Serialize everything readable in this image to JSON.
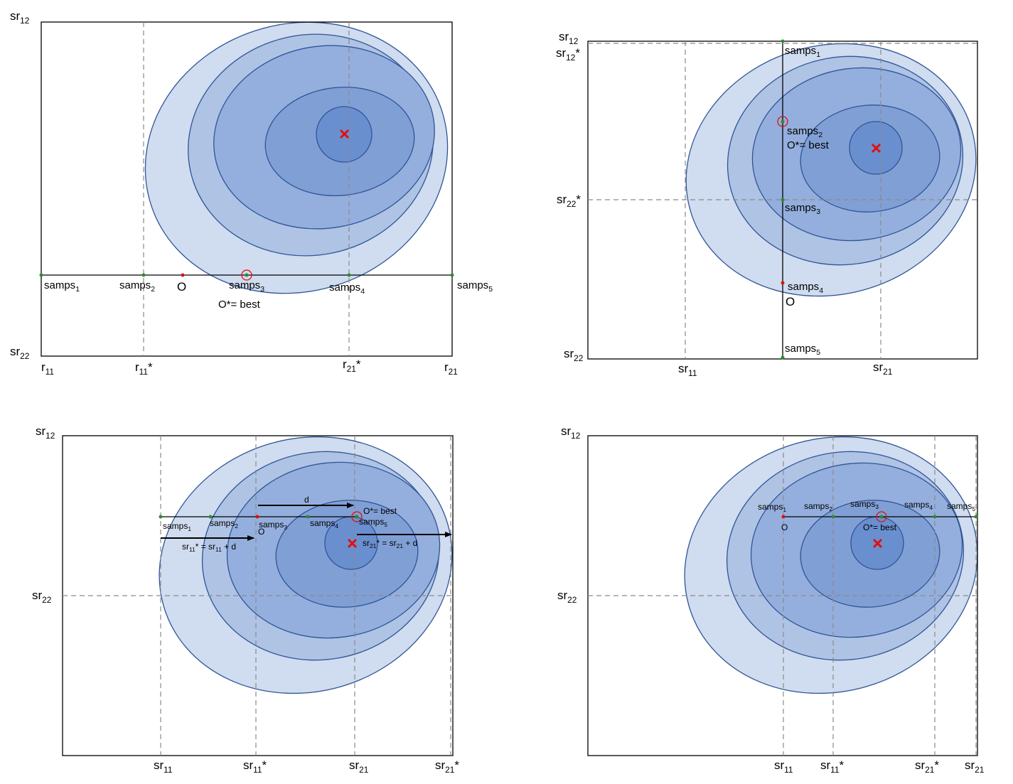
{
  "colors": {
    "ring1": "#d0dcef",
    "ring2": "#afc3e5",
    "ring3": "#94afdd",
    "ring4": "#809fd5",
    "ring5": "#7397d2",
    "ring6": "#6a8fcf",
    "ring_stroke": "#2f5597",
    "optimum_mark": "#e01010",
    "sample_point": "#2e8b2e",
    "origin_point": "#e01010",
    "highlight_ring": "#e01010"
  },
  "panel1": {
    "corner_top": "sr",
    "corner_top_sub": "12",
    "corner_bottom": "sr",
    "corner_bottom_sub": "22",
    "axis_left": "r",
    "axis_left_sub": "11",
    "axis_right": "r",
    "axis_right_sub": "21",
    "axis_left_star": "r",
    "axis_left_star_sub": "11",
    "axis_left_star_suffix": "*",
    "axis_right_star": "r",
    "axis_right_star_sub": "21",
    "axis_right_star_suffix": "*",
    "samples": [
      {
        "name": "samps",
        "sub": "1"
      },
      {
        "name": "samps",
        "sub": "2"
      },
      {
        "name": "samps",
        "sub": "3"
      },
      {
        "name": "samps",
        "sub": "4"
      },
      {
        "name": "samps",
        "sub": "5"
      }
    ],
    "origin": "O",
    "best": "O*= best"
  },
  "panel2": {
    "top1": "sr",
    "top1_sub": "12",
    "top2": "sr",
    "top2_sub": "12",
    "top2_suffix": "*",
    "mid": "sr",
    "mid_sub": "22",
    "mid_suffix": "*",
    "bottom": "sr",
    "bottom_sub": "22",
    "axis_left": "sr",
    "axis_left_sub": "11",
    "axis_right": "sr",
    "axis_right_sub": "21",
    "samples": [
      {
        "name": "samps",
        "sub": "1"
      },
      {
        "name": "samps",
        "sub": "2"
      },
      {
        "name": "samps",
        "sub": "3"
      },
      {
        "name": "samps",
        "sub": "4"
      },
      {
        "name": "samps",
        "sub": "5"
      }
    ],
    "origin": "O",
    "best": "O*= best"
  },
  "panel3": {
    "corner_top": "sr",
    "corner_top_sub": "12",
    "mid": "sr",
    "mid_sub": "22",
    "axis": [
      {
        "name": "sr",
        "sub": "11",
        "suffix": ""
      },
      {
        "name": "sr",
        "sub": "11",
        "suffix": "*"
      },
      {
        "name": "sr",
        "sub": "21",
        "suffix": ""
      },
      {
        "name": "sr",
        "sub": "21",
        "suffix": "*"
      }
    ],
    "samples": [
      {
        "name": "samps",
        "sub": "1"
      },
      {
        "name": "samps",
        "sub": "2"
      },
      {
        "name": "samps",
        "sub": "3"
      },
      {
        "name": "samps",
        "sub": "4"
      },
      {
        "name": "samps",
        "sub": "5"
      }
    ],
    "origin": "O",
    "best": "O*= best",
    "d": "d",
    "eq_left_a": "sr",
    "eq_left_a_sub": "11",
    "eq_left_b": "* = sr",
    "eq_left_b_sub": "11",
    "eq_left_c": " + d",
    "eq_right_a": "sr",
    "eq_right_a_sub": "21",
    "eq_right_b": "* = sr",
    "eq_right_b_sub": "21",
    "eq_right_c": " + d"
  },
  "panel4": {
    "corner_top": "sr",
    "corner_top_sub": "12",
    "mid": "sr",
    "mid_sub": "22",
    "axis": [
      {
        "name": "sr",
        "sub": "11",
        "suffix": ""
      },
      {
        "name": "sr",
        "sub": "11",
        "suffix": "*"
      },
      {
        "name": "sr",
        "sub": "21",
        "suffix": "*"
      },
      {
        "name": "sr",
        "sub": "21",
        "suffix": ""
      }
    ],
    "samples": [
      {
        "name": "samps",
        "sub": "1"
      },
      {
        "name": "samps",
        "sub": "2"
      },
      {
        "name": "samps",
        "sub": "3"
      },
      {
        "name": "samps",
        "sub": "4"
      },
      {
        "name": "samps",
        "sub": "5"
      }
    ],
    "origin": "O",
    "best": "O*= best"
  }
}
